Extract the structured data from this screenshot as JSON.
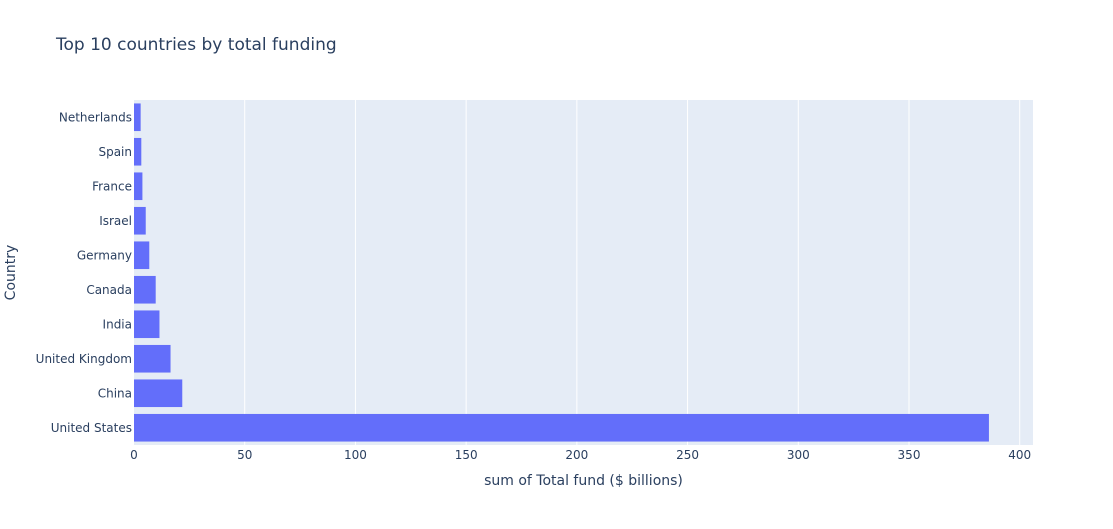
{
  "chart_data": {
    "type": "bar",
    "orientation": "horizontal",
    "title": "Top 10 countries by total funding",
    "xlabel": "sum of Total fund ($ billions)",
    "ylabel": "Country",
    "xlim": [
      0,
      406
    ],
    "x_ticks": [
      0,
      50,
      100,
      150,
      200,
      250,
      300,
      350,
      400
    ],
    "categories": [
      "United States",
      "China",
      "United Kingdom",
      "India",
      "Canada",
      "Germany",
      "Israel",
      "France",
      "Spain",
      "Netherlands"
    ],
    "values": [
      386.1,
      21.8,
      16.5,
      11.5,
      9.8,
      6.9,
      5.3,
      3.8,
      3.3,
      3.0
    ],
    "grid": true,
    "legend": false,
    "colors": {
      "bar": "#636efa",
      "plot_background": "#e5ecf6",
      "grid": "#ffffff",
      "text": "#2a3f5f"
    }
  }
}
